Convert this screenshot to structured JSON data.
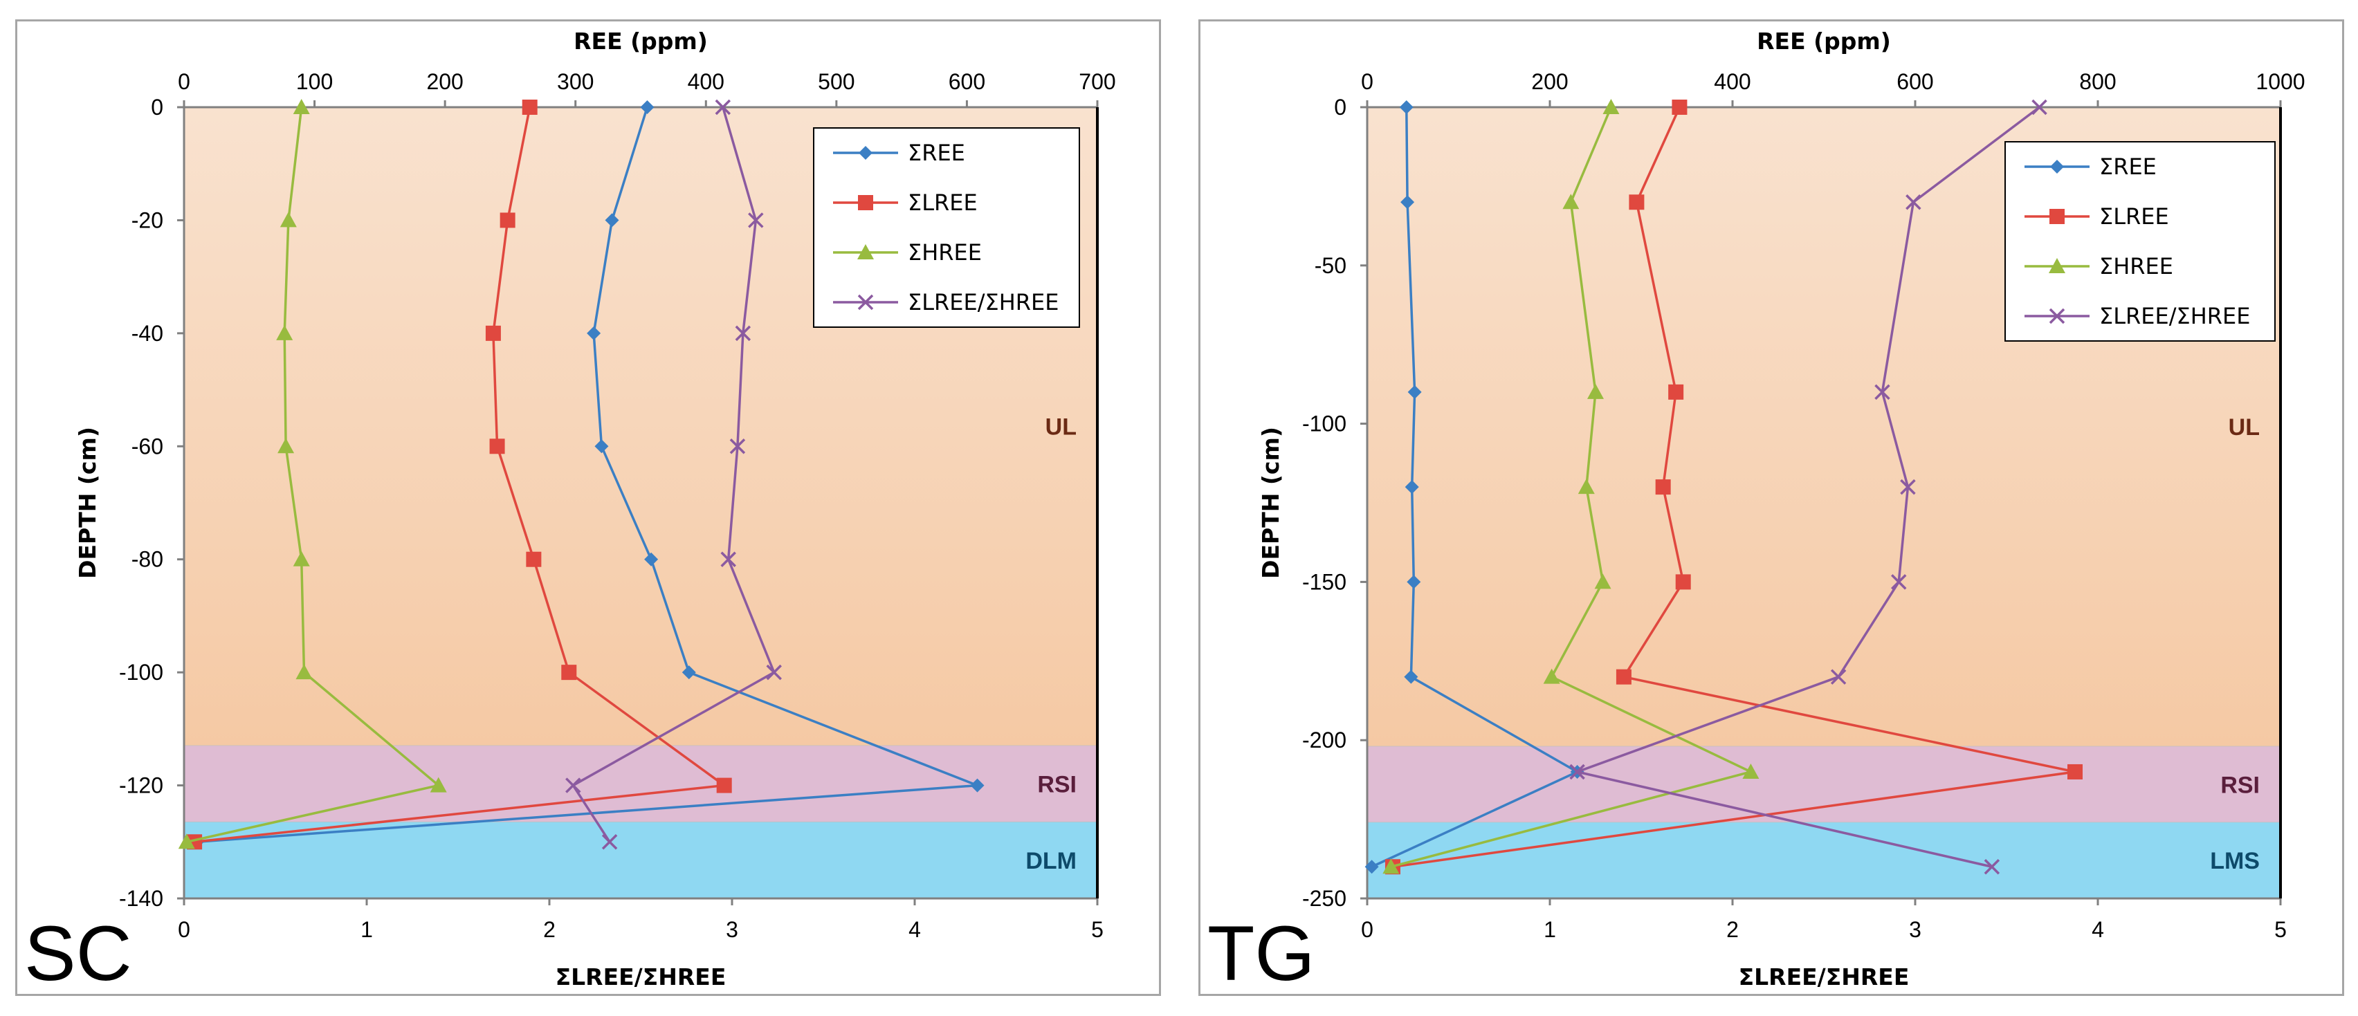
{
  "chart_data": [
    {
      "type": "line",
      "site_label": "SC",
      "top_axis_title": "REE (ppm)",
      "bottom_axis_title": "ΣLREE/ΣHREE",
      "ylabel": "DEPTH (cm)",
      "top_xlim": [
        0,
        700
      ],
      "top_xticks": [
        "0",
        "100",
        "200",
        "300",
        "400",
        "500",
        "600",
        "700"
      ],
      "bottom_xlim": [
        0,
        5
      ],
      "bottom_xticks": [
        "0",
        "1",
        "2",
        "3",
        "4",
        "5"
      ],
      "ylim": [
        -140,
        0
      ],
      "yticks": [
        "0",
        "-20",
        "-40",
        "-60",
        "-80",
        "-100",
        "-120",
        "-140"
      ],
      "legend_position": "top-right",
      "zones": [
        {
          "label": "UL",
          "from": 0,
          "to": -113,
          "color": "#f5c9a4"
        },
        {
          "label": "RSI",
          "from": -113,
          "to": -126.5,
          "color": "#dfbcd3"
        },
        {
          "label": "DLM",
          "from": -126.5,
          "to": -140,
          "color": "#8fd8f2"
        }
      ],
      "series": [
        {
          "name": "ΣREE",
          "axis": "top",
          "color": "#3b7fc4",
          "marker": "diamond",
          "points": [
            [
              355,
              0
            ],
            [
              328,
              -20
            ],
            [
              314,
              -40
            ],
            [
              320,
              -60
            ],
            [
              358,
              -80
            ],
            [
              387,
              -100
            ],
            [
              608,
              -120
            ],
            [
              10,
              -130
            ]
          ]
        },
        {
          "name": "ΣLREE",
          "axis": "top",
          "color": "#e0483f",
          "marker": "square",
          "points": [
            [
              265,
              0
            ],
            [
              248,
              -20
            ],
            [
              237,
              -40
            ],
            [
              240,
              -60
            ],
            [
              268,
              -80
            ],
            [
              295,
              -100
            ],
            [
              414,
              -120
            ],
            [
              8,
              -130
            ]
          ]
        },
        {
          "name": "ΣHREE",
          "axis": "top",
          "color": "#98bb3f",
          "marker": "triangle",
          "points": [
            [
              90,
              0
            ],
            [
              80,
              -20
            ],
            [
              77,
              -40
            ],
            [
              78,
              -60
            ],
            [
              90,
              -80
            ],
            [
              92,
              -100
            ],
            [
              195,
              -120
            ],
            [
              2,
              -130
            ]
          ]
        },
        {
          "name": "ΣLREE/ΣHREE",
          "axis": "bottom",
          "color": "#8b5aa0",
          "marker": "x",
          "points": [
            [
              2.95,
              0
            ],
            [
              3.13,
              -20
            ],
            [
              3.06,
              -40
            ],
            [
              3.03,
              -60
            ],
            [
              2.98,
              -80
            ],
            [
              3.23,
              -100
            ],
            [
              2.13,
              -120
            ],
            [
              2.33,
              -130
            ]
          ]
        }
      ]
    },
    {
      "type": "line",
      "site_label": "TG",
      "top_axis_title": "REE (ppm)",
      "bottom_axis_title": "ΣLREE/ΣHREE",
      "ylabel": "DEPTH (cm)",
      "top_xlim": [
        0,
        1000
      ],
      "top_xticks": [
        "0",
        "200",
        "400",
        "600",
        "800",
        "1000"
      ],
      "bottom_xlim": [
        0,
        5
      ],
      "bottom_xticks": [
        "0",
        "1",
        "2",
        "3",
        "4",
        "5"
      ],
      "ylim": [
        -250,
        0
      ],
      "yticks": [
        "0",
        "-50",
        "-100",
        "-150",
        "-200",
        "-250"
      ],
      "legend_position": "top-right",
      "zones": [
        {
          "label": "UL",
          "from": 0,
          "to": -202,
          "color": "#f5c9a4"
        },
        {
          "label": "RSI",
          "from": -202,
          "to": -226,
          "color": "#dfbcd3"
        },
        {
          "label": "LMS",
          "from": -226,
          "to": -250,
          "color": "#8fd8f2"
        }
      ],
      "series": [
        {
          "name": "ΣREE",
          "axis": "top",
          "color": "#3b7fc4",
          "marker": "diamond",
          "points": [
            [
              43,
              0
            ],
            [
              44,
              -30
            ],
            [
              52,
              -90
            ],
            [
              49,
              -120
            ],
            [
              51,
              -150
            ],
            [
              48,
              -180
            ],
            [
              230,
              -210
            ],
            [
              5,
              -240
            ]
          ]
        },
        {
          "name": "ΣLREE",
          "axis": "top",
          "color": "#e0483f",
          "marker": "square",
          "points": [
            [
              342,
              0
            ],
            [
              295,
              -30
            ],
            [
              338,
              -90
            ],
            [
              324,
              -120
            ],
            [
              346,
              -150
            ],
            [
              281,
              -180
            ],
            [
              775,
              -210
            ],
            [
              28,
              -240
            ]
          ]
        },
        {
          "name": "ΣHREE",
          "axis": "top",
          "color": "#98bb3f",
          "marker": "triangle",
          "points": [
            [
              267,
              0
            ],
            [
              223,
              -30
            ],
            [
              250,
              -90
            ],
            [
              240,
              -120
            ],
            [
              258,
              -150
            ],
            [
              202,
              -180
            ],
            [
              420,
              -210
            ],
            [
              26,
              -240
            ]
          ]
        },
        {
          "name": "ΣLREE/ΣHREE",
          "axis": "bottom",
          "color": "#8b5aa0",
          "marker": "x",
          "points": [
            [
              3.68,
              0
            ],
            [
              2.99,
              -30
            ],
            [
              2.82,
              -90
            ],
            [
              2.96,
              -120
            ],
            [
              2.91,
              -150
            ],
            [
              2.58,
              -180
            ],
            [
              1.15,
              -210
            ],
            [
              3.42,
              -240
            ]
          ]
        }
      ]
    }
  ]
}
